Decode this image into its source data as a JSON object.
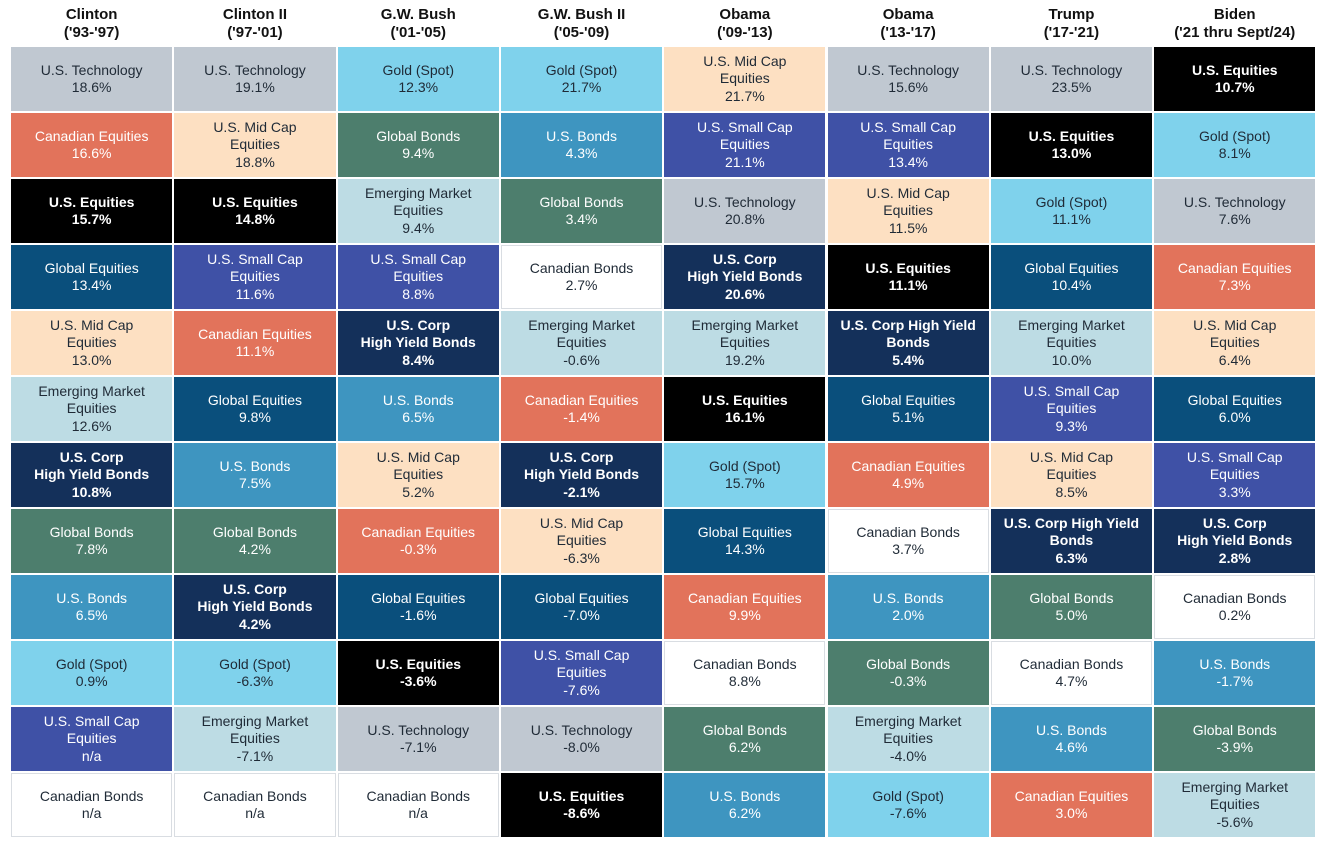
{
  "colors": {
    "U.S. Technology": "#c0c8d1",
    "Canadian Equities": "#e2735b",
    "U.S. Equities": "#000000",
    "Global Equities": "#0a4f7c",
    "U.S. Mid Cap Equities": "#fde0c2",
    "Emerging Market Equities": "#bddce4",
    "U.S. Corp High Yield Bonds": "#14305a",
    "Global Bonds": "#4d7e6d",
    "U.S. Bonds": "#3e95c0",
    "Gold (Spot)": "#7fd2ec",
    "U.S. Small Cap Equities": "#3f51a6",
    "Canadian Bonds": "#ffffff"
  },
  "chart_data": {
    "type": "table",
    "columns": [
      {
        "name": "Clinton",
        "period": "('93-'97)",
        "cells": [
          {
            "asset": "U.S. Technology",
            "label": "U.S. Technology",
            "value": "18.6%"
          },
          {
            "asset": "Canadian Equities",
            "label": "Canadian Equities",
            "value": "16.6%"
          },
          {
            "asset": "U.S. Equities",
            "label": "U.S. Equities",
            "value": "15.7%"
          },
          {
            "asset": "Global Equities",
            "label": "Global Equities",
            "value": "13.4%"
          },
          {
            "asset": "U.S. Mid Cap Equities",
            "label": "U.S. Mid Cap\nEquities",
            "value": "13.0%"
          },
          {
            "asset": "Emerging Market Equities",
            "label": "Emerging Market\nEquities",
            "value": "12.6%"
          },
          {
            "asset": "U.S. Corp High Yield Bonds",
            "label": "U.S. Corp\nHigh Yield Bonds",
            "value": "10.8%"
          },
          {
            "asset": "Global Bonds",
            "label": "Global Bonds",
            "value": "7.8%"
          },
          {
            "asset": "U.S. Bonds",
            "label": "U.S. Bonds",
            "value": "6.5%"
          },
          {
            "asset": "Gold (Spot)",
            "label": "Gold (Spot)",
            "value": "0.9%"
          },
          {
            "asset": "U.S. Small Cap Equities",
            "label": "U.S. Small Cap\nEquities",
            "value": "n/a"
          },
          {
            "asset": "Canadian Bonds",
            "label": "Canadian Bonds",
            "value": "n/a"
          }
        ]
      },
      {
        "name": "Clinton II",
        "period": "('97-'01)",
        "cells": [
          {
            "asset": "U.S. Technology",
            "label": "U.S. Technology",
            "value": "19.1%"
          },
          {
            "asset": "U.S. Mid Cap Equities",
            "label": "U.S. Mid Cap\nEquities",
            "value": "18.8%"
          },
          {
            "asset": "U.S. Equities",
            "label": "U.S. Equities",
            "value": "14.8%"
          },
          {
            "asset": "U.S. Small Cap Equities",
            "label": "U.S. Small Cap\nEquities",
            "value": "11.6%"
          },
          {
            "asset": "Canadian Equities",
            "label": "Canadian Equities",
            "value": "11.1%"
          },
          {
            "asset": "Global Equities",
            "label": "Global Equities",
            "value": "9.8%"
          },
          {
            "asset": "U.S. Bonds",
            "label": "U.S. Bonds",
            "value": "7.5%"
          },
          {
            "asset": "Global Bonds",
            "label": "Global Bonds",
            "value": "4.2%"
          },
          {
            "asset": "U.S. Corp High Yield Bonds",
            "label": "U.S. Corp\nHigh Yield Bonds",
            "value": "4.2%"
          },
          {
            "asset": "Gold (Spot)",
            "label": "Gold (Spot)",
            "value": "-6.3%"
          },
          {
            "asset": "Emerging Market Equities",
            "label": "Emerging Market\nEquities",
            "value": "-7.1%"
          },
          {
            "asset": "Canadian Bonds",
            "label": "Canadian Bonds",
            "value": "n/a"
          }
        ]
      },
      {
        "name": "G.W. Bush",
        "period": "('01-'05)",
        "cells": [
          {
            "asset": "Gold (Spot)",
            "label": "Gold (Spot)",
            "value": "12.3%"
          },
          {
            "asset": "Global Bonds",
            "label": "Global Bonds",
            "value": "9.4%"
          },
          {
            "asset": "Emerging Market Equities",
            "label": "Emerging Market\nEquities",
            "value": "9.4%"
          },
          {
            "asset": "U.S. Small Cap Equities",
            "label": "U.S. Small Cap\nEquities",
            "value": "8.8%"
          },
          {
            "asset": "U.S. Corp High Yield Bonds",
            "label": "U.S. Corp\nHigh Yield Bonds",
            "value": "8.4%"
          },
          {
            "asset": "U.S. Bonds",
            "label": "U.S. Bonds",
            "value": "6.5%"
          },
          {
            "asset": "U.S. Mid Cap Equities",
            "label": "U.S. Mid Cap\nEquities",
            "value": "5.2%"
          },
          {
            "asset": "Canadian Equities",
            "label": "Canadian Equities",
            "value": "-0.3%"
          },
          {
            "asset": "Global Equities",
            "label": "Global Equities",
            "value": "-1.6%"
          },
          {
            "asset": "U.S. Equities",
            "label": "U.S. Equities",
            "value": "-3.6%"
          },
          {
            "asset": "U.S. Technology",
            "label": "U.S. Technology",
            "value": "-7.1%"
          },
          {
            "asset": "Canadian Bonds",
            "label": "Canadian Bonds",
            "value": "n/a"
          }
        ]
      },
      {
        "name": "G.W. Bush II",
        "period": "('05-'09)",
        "cells": [
          {
            "asset": "Gold (Spot)",
            "label": "Gold (Spot)",
            "value": "21.7%"
          },
          {
            "asset": "U.S. Bonds",
            "label": "U.S. Bonds",
            "value": "4.3%"
          },
          {
            "asset": "Global Bonds",
            "label": "Global Bonds",
            "value": "3.4%"
          },
          {
            "asset": "Canadian Bonds",
            "label": "Canadian Bonds",
            "value": "2.7%"
          },
          {
            "asset": "Emerging Market Equities",
            "label": "Emerging Market\nEquities",
            "value": "-0.6%"
          },
          {
            "asset": "Canadian Equities",
            "label": "Canadian Equities",
            "value": "-1.4%"
          },
          {
            "asset": "U.S. Corp High Yield Bonds",
            "label": "U.S. Corp\nHigh Yield Bonds",
            "value": "-2.1%"
          },
          {
            "asset": "U.S. Mid Cap Equities",
            "label": "U.S. Mid Cap\nEquities",
            "value": "-6.3%"
          },
          {
            "asset": "Global Equities",
            "label": "Global Equities",
            "value": "-7.0%"
          },
          {
            "asset": "U.S. Small Cap Equities",
            "label": "U.S. Small Cap\nEquities",
            "value": "-7.6%"
          },
          {
            "asset": "U.S. Technology",
            "label": "U.S. Technology",
            "value": "-8.0%"
          },
          {
            "asset": "U.S. Equities",
            "label": "U.S. Equities",
            "value": "-8.6%"
          }
        ]
      },
      {
        "name": "Obama",
        "period": "('09-'13)",
        "cells": [
          {
            "asset": "U.S. Mid Cap Equities",
            "label": "U.S. Mid Cap\nEquities",
            "value": "21.7%"
          },
          {
            "asset": "U.S. Small Cap Equities",
            "label": "U.S. Small Cap\nEquities",
            "value": "21.1%"
          },
          {
            "asset": "U.S. Technology",
            "label": "U.S. Technology",
            "value": "20.8%"
          },
          {
            "asset": "U.S. Corp High Yield Bonds",
            "label": "U.S. Corp\nHigh Yield Bonds",
            "value": "20.6%"
          },
          {
            "asset": "Emerging Market Equities",
            "label": "Emerging Market\nEquities",
            "value": "19.2%"
          },
          {
            "asset": "U.S. Equities",
            "label": "U.S. Equities",
            "value": "16.1%"
          },
          {
            "asset": "Gold (Spot)",
            "label": "Gold (Spot)",
            "value": "15.7%"
          },
          {
            "asset": "Global Equities",
            "label": "Global Equities",
            "value": "14.3%"
          },
          {
            "asset": "Canadian Equities",
            "label": "Canadian Equities",
            "value": "9.9%"
          },
          {
            "asset": "Canadian Bonds",
            "label": "Canadian Bonds",
            "value": "8.8%"
          },
          {
            "asset": "Global Bonds",
            "label": "Global Bonds",
            "value": "6.2%"
          },
          {
            "asset": "U.S. Bonds",
            "label": "U.S. Bonds",
            "value": "6.2%"
          }
        ]
      },
      {
        "name": "Obama",
        "period": "('13-'17)",
        "cells": [
          {
            "asset": "U.S. Technology",
            "label": "U.S. Technology",
            "value": "15.6%"
          },
          {
            "asset": "U.S. Small Cap Equities",
            "label": "U.S. Small Cap\nEquities",
            "value": "13.4%"
          },
          {
            "asset": "U.S. Mid Cap Equities",
            "label": "U.S. Mid Cap\nEquities",
            "value": "11.5%"
          },
          {
            "asset": "U.S. Equities",
            "label": "U.S. Equities",
            "value": "11.1%"
          },
          {
            "asset": "U.S. Corp High Yield Bonds",
            "label": "U.S. Corp High Yield\nBonds",
            "value": "5.4%"
          },
          {
            "asset": "Global Equities",
            "label": "Global Equities",
            "value": "5.1%"
          },
          {
            "asset": "Canadian Equities",
            "label": "Canadian Equities",
            "value": "4.9%"
          },
          {
            "asset": "Canadian Bonds",
            "label": "Canadian Bonds",
            "value": "3.7%"
          },
          {
            "asset": "U.S. Bonds",
            "label": "U.S. Bonds",
            "value": "2.0%"
          },
          {
            "asset": "Global Bonds",
            "label": "Global Bonds",
            "value": "-0.3%"
          },
          {
            "asset": "Emerging Market Equities",
            "label": "Emerging Market\nEquities",
            "value": "-4.0%"
          },
          {
            "asset": "Gold (Spot)",
            "label": "Gold (Spot)",
            "value": "-7.6%"
          }
        ]
      },
      {
        "name": "Trump",
        "period": "('17-'21)",
        "cells": [
          {
            "asset": "U.S. Technology",
            "label": "U.S. Technology",
            "value": "23.5%"
          },
          {
            "asset": "U.S. Equities",
            "label": "U.S. Equities",
            "value": "13.0%"
          },
          {
            "asset": "Gold (Spot)",
            "label": "Gold (Spot)",
            "value": "11.1%"
          },
          {
            "asset": "Global Equities",
            "label": "Global Equities",
            "value": "10.4%"
          },
          {
            "asset": "Emerging Market Equities",
            "label": "Emerging Market\nEquities",
            "value": "10.0%"
          },
          {
            "asset": "U.S. Small Cap Equities",
            "label": "U.S. Small Cap\nEquities",
            "value": "9.3%"
          },
          {
            "asset": "U.S. Mid Cap Equities",
            "label": "U.S. Mid Cap\nEquities",
            "value": "8.5%"
          },
          {
            "asset": "U.S. Corp High Yield Bonds",
            "label": "U.S. Corp High Yield\nBonds",
            "value": "6.3%"
          },
          {
            "asset": "Global Bonds",
            "label": "Global Bonds",
            "value": "5.0%"
          },
          {
            "asset": "Canadian Bonds",
            "label": "Canadian Bonds",
            "value": "4.7%"
          },
          {
            "asset": "U.S. Bonds",
            "label": "U.S. Bonds",
            "value": "4.6%"
          },
          {
            "asset": "Canadian Equities",
            "label": "Canadian Equities",
            "value": "3.0%"
          }
        ]
      },
      {
        "name": "Biden",
        "period": "('21 thru Sept/24)",
        "cells": [
          {
            "asset": "U.S. Equities",
            "label": "U.S. Equities",
            "value": "10.7%"
          },
          {
            "asset": "Gold (Spot)",
            "label": "Gold (Spot)",
            "value": "8.1%"
          },
          {
            "asset": "U.S. Technology",
            "label": "U.S. Technology",
            "value": "7.6%"
          },
          {
            "asset": "Canadian Equities",
            "label": "Canadian Equities",
            "value": "7.3%"
          },
          {
            "asset": "U.S. Mid Cap Equities",
            "label": "U.S. Mid Cap\nEquities",
            "value": "6.4%"
          },
          {
            "asset": "Global Equities",
            "label": "Global Equities",
            "value": "6.0%"
          },
          {
            "asset": "U.S. Small Cap Equities",
            "label": "U.S. Small Cap\nEquities",
            "value": "3.3%"
          },
          {
            "asset": "U.S. Corp High Yield Bonds",
            "label": "U.S. Corp\nHigh Yield Bonds",
            "value": "2.8%"
          },
          {
            "asset": "Canadian Bonds",
            "label": "Canadian Bonds",
            "value": "0.2%"
          },
          {
            "asset": "U.S. Bonds",
            "label": "U.S. Bonds",
            "value": "-1.7%"
          },
          {
            "asset": "Global Bonds",
            "label": "Global Bonds",
            "value": "-3.9%"
          },
          {
            "asset": "Emerging Market Equities",
            "label": "Emerging Market\nEquities",
            "value": "-5.6%"
          }
        ]
      }
    ]
  }
}
